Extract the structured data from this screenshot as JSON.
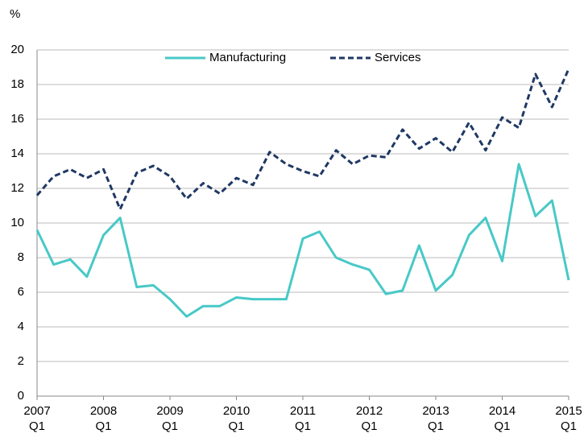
{
  "chart_data": {
    "type": "line",
    "y_label": "%",
    "categories": [
      "2007\nQ1",
      null,
      null,
      null,
      "2008\nQ1",
      null,
      null,
      null,
      "2009\nQ1",
      null,
      null,
      null,
      "2010\nQ1",
      null,
      null,
      null,
      "2011\nQ1",
      null,
      null,
      null,
      "2012\nQ1",
      null,
      null,
      null,
      "2013\nQ1",
      null,
      null,
      null,
      "2014\nQ1",
      null,
      null,
      null,
      "2015\nQ1"
    ],
    "series": [
      {
        "name": "Manufacturing",
        "color": "#47c9c7",
        "dash": false,
        "values": [
          9.6,
          7.6,
          7.9,
          6.9,
          9.3,
          10.3,
          6.3,
          6.4,
          5.6,
          4.6,
          5.2,
          5.2,
          5.7,
          5.6,
          5.6,
          5.6,
          9.1,
          9.5,
          8.0,
          7.6,
          7.3,
          5.9,
          6.1,
          8.7,
          6.1,
          7.0,
          9.3,
          10.3,
          7.8,
          13.4,
          10.4,
          11.3,
          6.7
        ]
      },
      {
        "name": "Services",
        "color": "#1f3864",
        "dash": true,
        "values": [
          11.6,
          12.7,
          13.1,
          12.6,
          13.1,
          10.8,
          12.9,
          13.3,
          12.7,
          11.4,
          12.3,
          11.7,
          12.6,
          12.2,
          14.1,
          13.4,
          13.0,
          12.7,
          14.2,
          13.4,
          13.9,
          13.8,
          15.4,
          14.3,
          14.9,
          14.1,
          15.8,
          14.2,
          16.1,
          15.5,
          18.6,
          16.7,
          18.9
        ]
      }
    ],
    "ylim": [
      0,
      20
    ],
    "yticks": [
      0,
      2,
      4,
      6,
      8,
      10,
      12,
      14,
      16,
      18,
      20
    ],
    "grid": true,
    "legend": "top"
  }
}
